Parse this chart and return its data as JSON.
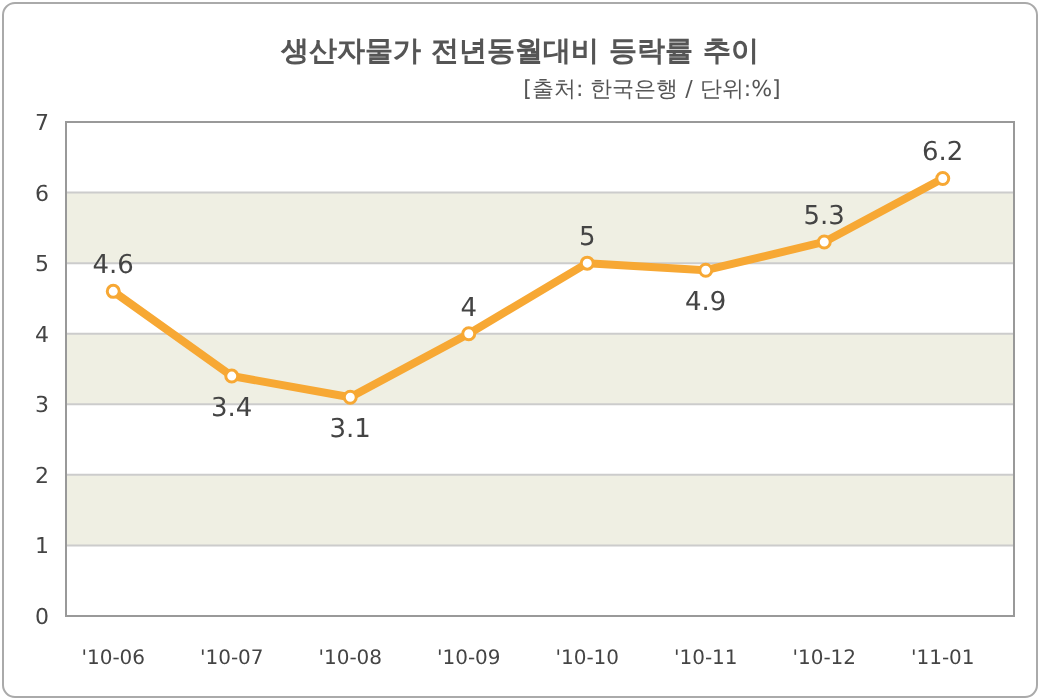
{
  "chart_data": {
    "type": "line",
    "title": "생산자물가 전년동월대비 등락률 추이",
    "subtitle": "[출처: 한국은행 / 단위:%]",
    "categories": [
      "'10-06",
      "'10-07",
      "'10-08",
      "'10-09",
      "'10-10",
      "'10-11",
      "'10-12",
      "'11-01"
    ],
    "series": [
      {
        "color": "#f7a834",
        "values": [
          4.6,
          3.4,
          3.1,
          4,
          5,
          4.9,
          5.3,
          6.2
        ]
      }
    ],
    "ylim": [
      0,
      7
    ],
    "yticks": [
      0,
      1,
      2,
      3,
      4,
      5,
      6,
      7
    ],
    "grid": "y",
    "marker": "circle",
    "line_style": "solid",
    "data_labels": true,
    "bands": [
      {
        "axis": "y",
        "from": 1,
        "to": 2,
        "color": "#efefe3"
      },
      {
        "axis": "y",
        "from": 3,
        "to": 4,
        "color": "#efefe3"
      },
      {
        "axis": "y",
        "from": 5,
        "to": 6,
        "color": "#efefe3"
      }
    ]
  }
}
